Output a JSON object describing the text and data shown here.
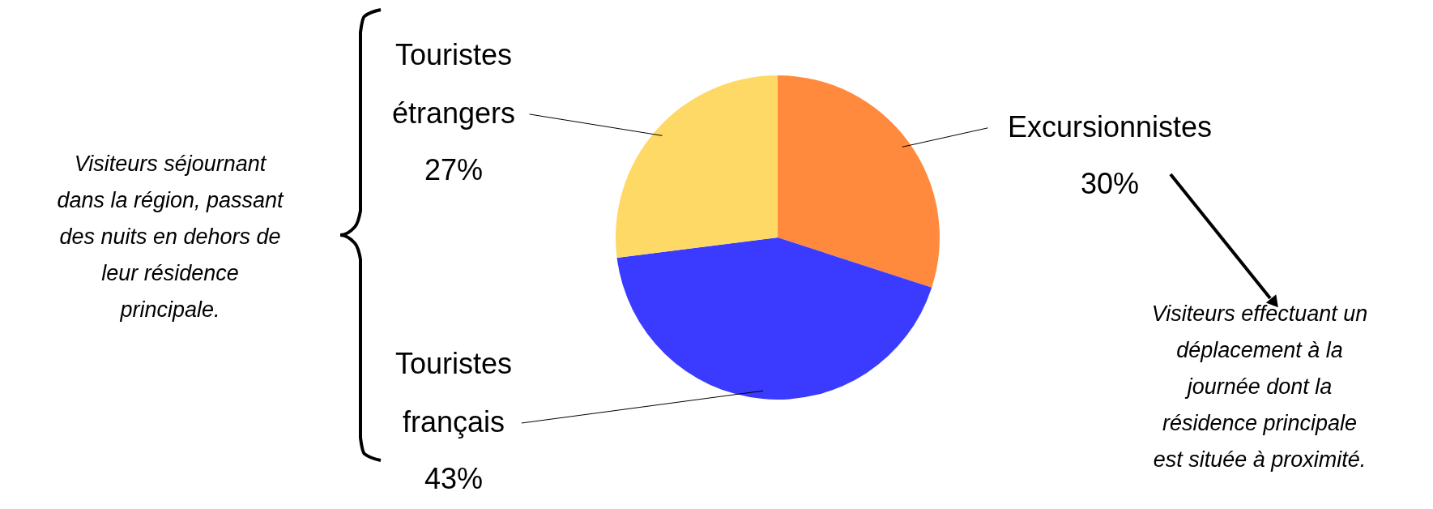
{
  "chart_data": {
    "type": "pie",
    "categories": [
      "Excursionnistes",
      "Touristes français",
      "Touristes étrangers"
    ],
    "values": [
      30,
      43,
      27
    ],
    "colors": [
      "#ff8a3d",
      "#3b3bff",
      "#ffd966"
    ],
    "value_labels": [
      "30%",
      "43%",
      "27%"
    ],
    "annotations": [
      "Visiteurs séjournant dans la région, passant des nuits en dehors de leur résidence principale.",
      "Visiteurs effectuant un déplacement à la journée dont la résidence principale est située à proximité."
    ],
    "data_labels": false
  }
}
